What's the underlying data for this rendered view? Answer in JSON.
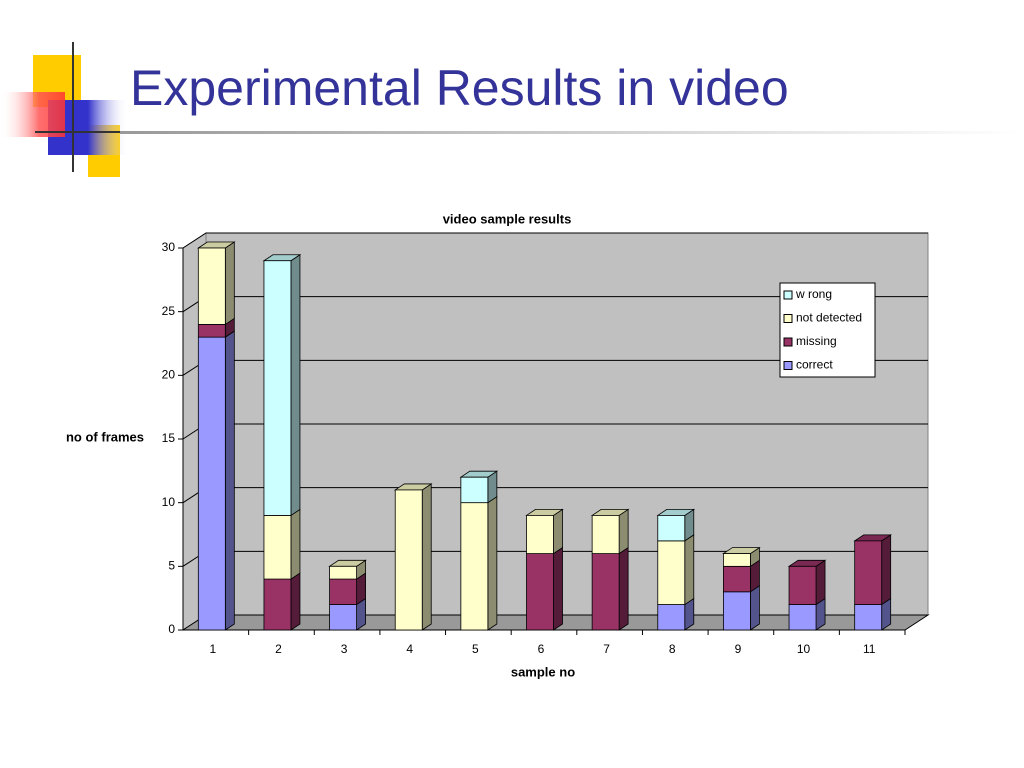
{
  "slide": {
    "title": "Experimental Results in video"
  },
  "chart_data": {
    "type": "bar",
    "stacked": true,
    "three_d": true,
    "title": "video sample results",
    "x_label": "sample no",
    "y_label": "no of frames",
    "categories": [
      "1",
      "2",
      "3",
      "4",
      "5",
      "6",
      "7",
      "8",
      "9",
      "10",
      "11"
    ],
    "series": [
      {
        "name": "correct",
        "color": "#9999ff",
        "values": [
          23,
          0,
          2,
          0,
          0,
          0,
          0,
          2,
          3,
          2,
          2
        ]
      },
      {
        "name": "missing",
        "color": "#993366",
        "values": [
          1,
          4,
          2,
          0,
          0,
          6,
          6,
          0,
          2,
          3,
          5
        ]
      },
      {
        "name": "not detected",
        "color": "#ffffcc",
        "values": [
          6,
          5,
          1,
          11,
          10,
          3,
          3,
          5,
          1,
          0,
          0
        ]
      },
      {
        "name": "w rong",
        "color": "#ccffff",
        "values": [
          0,
          20,
          0,
          0,
          2,
          0,
          0,
          2,
          0,
          0,
          0
        ]
      }
    ],
    "ylim": [
      0,
      30
    ],
    "yticks": [
      0,
      5,
      10,
      15,
      20,
      25,
      30
    ],
    "grid": true,
    "legend": "upper right"
  }
}
